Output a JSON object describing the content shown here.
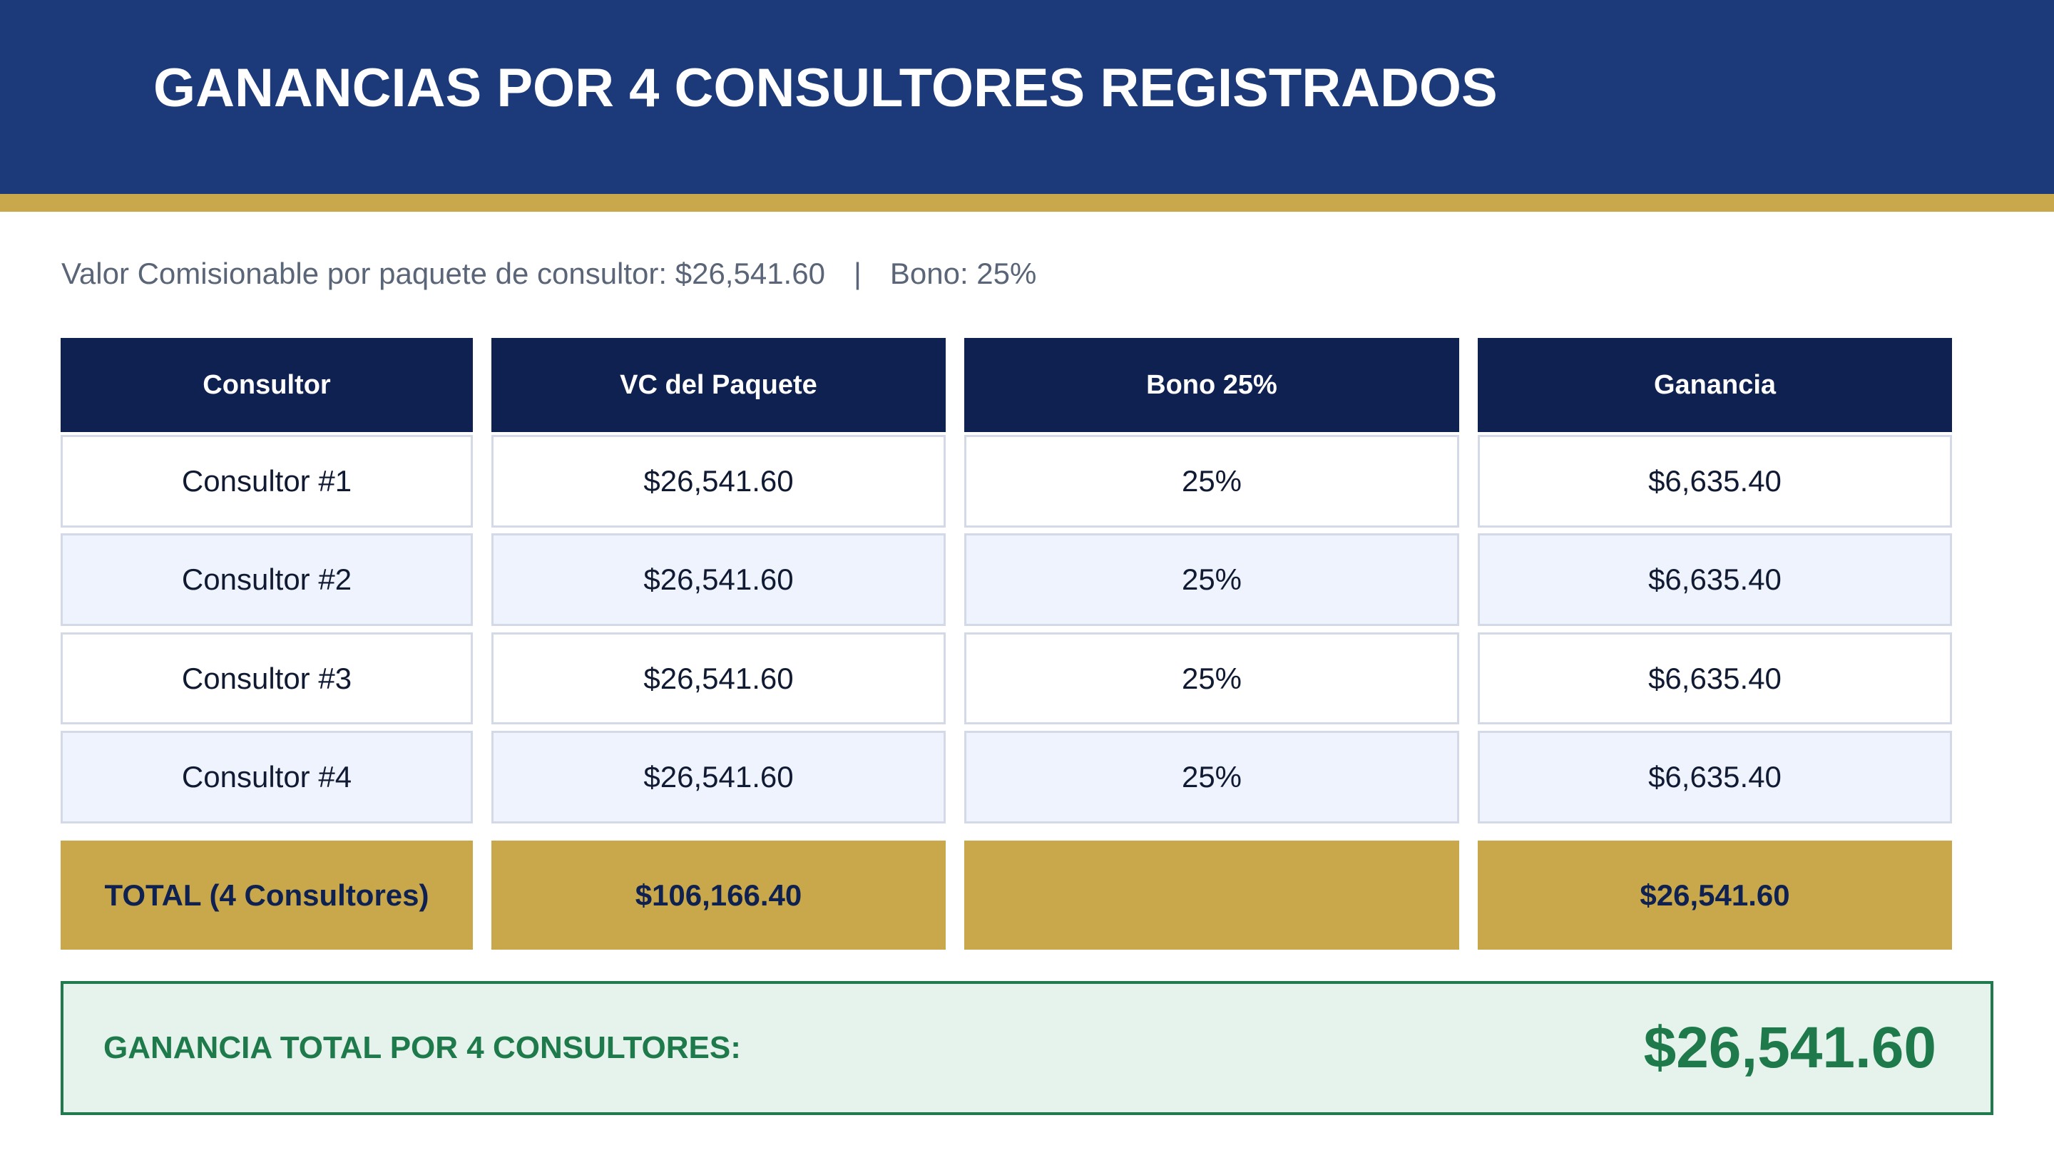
{
  "header": {
    "title": "GANANCIAS POR 4 CONSULTORES REGISTRADOS"
  },
  "subtitle": {
    "valor": "Valor Comisionable por paquete de consultor: $26,541.60",
    "separator": "|",
    "bono": "Bono: 25%"
  },
  "table": {
    "columns": [
      "Consultor",
      "VC del Paquete",
      "Bono 25%",
      "Ganancia"
    ],
    "rows": [
      [
        "Consultor #1",
        "$26,541.60",
        "25%",
        "$6,635.40"
      ],
      [
        "Consultor #2",
        "$26,541.60",
        "25%",
        "$6,635.40"
      ],
      [
        "Consultor #3",
        "$26,541.60",
        "25%",
        "$6,635.40"
      ],
      [
        "Consultor #4",
        "$26,541.60",
        "25%",
        "$6,635.40"
      ]
    ],
    "total": [
      "TOTAL (4 Consultores)",
      "$106,166.40",
      "",
      "$26,541.60"
    ]
  },
  "summary": {
    "label": "GANANCIA TOTAL POR 4 CONSULTORES:",
    "value": "$26,541.60"
  },
  "colors": {
    "header": "#1c3a7a",
    "gold": "#c8a84b",
    "table_header": "#0e2150",
    "green": "#1f7a4b",
    "summary_bg": "#e5f3ec"
  }
}
